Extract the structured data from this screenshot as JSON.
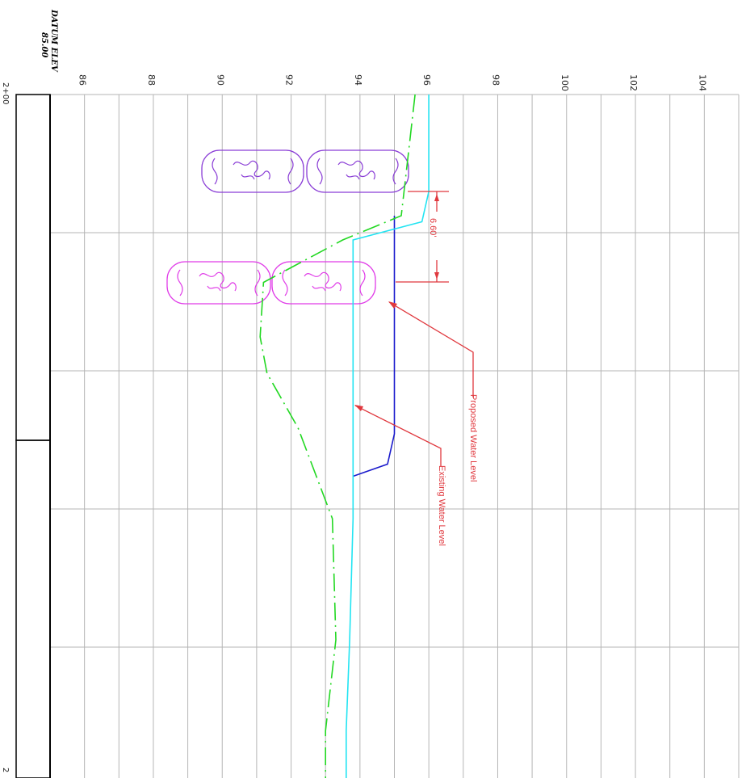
{
  "chart_data": {
    "type": "line",
    "orientation": "elevation profile (rotated 90 deg; elevation on horizontal axis, station on vertical axis)",
    "datum_label": "DATUM ELEV",
    "datum_value": "85.00",
    "xticks": [
      86,
      88,
      90,
      92,
      94,
      96,
      98,
      100,
      102,
      104
    ],
    "xlim": [
      85,
      105
    ],
    "station_labels": [
      "2+00",
      "2"
    ],
    "grid": true,
    "series": [
      {
        "name": "Proposed Water Level",
        "color": "#1a1acc",
        "x": [
          95.0,
          95.0,
          94.8,
          93.8
        ],
        "y": [
          2.0,
          5.6,
          6.1,
          6.3
        ]
      },
      {
        "name": "Existing Water Level",
        "color": "#22e4f2",
        "x": [
          96.0,
          96.0,
          95.8,
          93.8,
          93.8,
          93.8,
          93.7,
          93.6,
          93.6
        ],
        "y": [
          0,
          1.6,
          2.1,
          2.4,
          5.0,
          7.0,
          9.0,
          10.5,
          11.3
        ]
      },
      {
        "name": "",
        "color": "#22d822",
        "x": [
          95.6,
          95.4,
          95.2,
          93.5,
          91.2,
          91.1,
          91.3,
          92.2,
          93.2,
          93.3,
          93.0,
          93.0
        ],
        "y": [
          0,
          1.0,
          2.0,
          2.4,
          3.1,
          4.0,
          4.6,
          5.5,
          7.0,
          9.0,
          10.5,
          11.3
        ]
      }
    ],
    "dimension": {
      "label": "6.60'",
      "y_from": 1.8,
      "y_to": 3.8
    },
    "annotations": [
      "Proposed Water Level",
      "Existing Water Level"
    ]
  },
  "style": {
    "grid_color": "#b5b5b5",
    "annotation_color": "#e0383e",
    "cloud_purple": "#8a3dd6",
    "cloud_magenta": "#e03ce8"
  }
}
